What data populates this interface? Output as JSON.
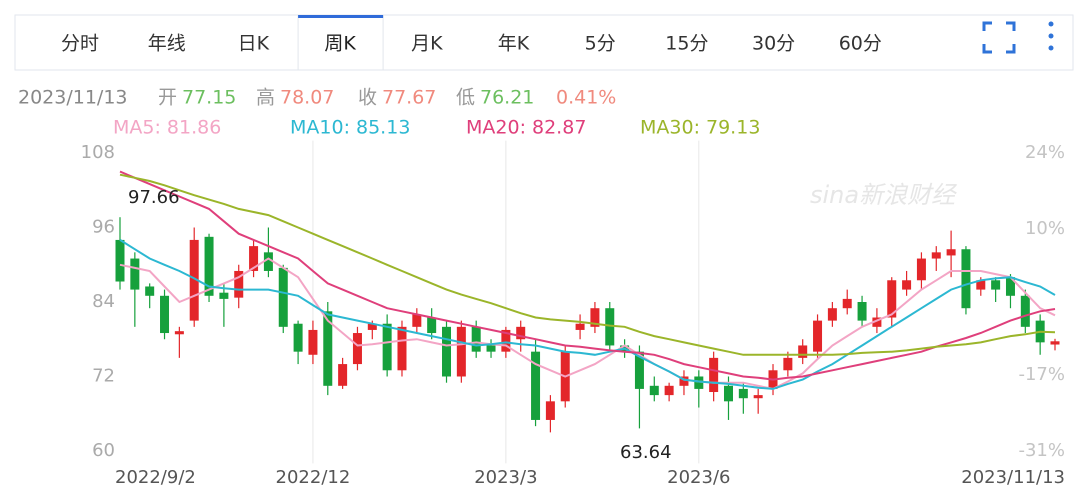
{
  "chart_data": {
    "type": "candlestick",
    "tabs": [
      "分时",
      "年线",
      "日K",
      "周K",
      "月K",
      "年K",
      "5分",
      "15分",
      "30分",
      "60分"
    ],
    "active_tab": 3,
    "quote_labels": [
      "开",
      "高",
      "收",
      "低"
    ],
    "change": {
      "value": 0.41,
      "label": "0.41%"
    },
    "watermark": "sina新浪财经",
    "categories": [
      "2022/9/2",
      null,
      null,
      null,
      null,
      null,
      null,
      null,
      null,
      null,
      null,
      null,
      null,
      "2022/12",
      null,
      null,
      null,
      null,
      null,
      null,
      null,
      null,
      null,
      null,
      null,
      null,
      "2023/3",
      null,
      null,
      null,
      null,
      null,
      null,
      null,
      null,
      null,
      null,
      null,
      null,
      "2023/6",
      null,
      null,
      null,
      null,
      null,
      null,
      null,
      null,
      null,
      null,
      null,
      null,
      null,
      null,
      null,
      null,
      null,
      null,
      null,
      null,
      null,
      null,
      null,
      "2023/11/13"
    ],
    "open": [
      94,
      91,
      86.5,
      85,
      78.8,
      81,
      94.5,
      85.5,
      84.7,
      89,
      92,
      89.5,
      80.5,
      75.5,
      82.5,
      70.5,
      74,
      79.5,
      80.5,
      73,
      80,
      81.5,
      80,
      72,
      80,
      77,
      76,
      78,
      76,
      65,
      68,
      79.5,
      80,
      83,
      77,
      76,
      70.5,
      69,
      70.5,
      72,
      69.5,
      70.5,
      70,
      68.5,
      70,
      73,
      75,
      76,
      81,
      83,
      84,
      80,
      81.5,
      86,
      87.5,
      91,
      91.5,
      92.5,
      86,
      87.5,
      88,
      85,
      81,
      77.15
    ],
    "high": [
      97.66,
      92,
      87,
      86,
      80,
      96,
      95,
      87,
      90,
      94,
      96,
      90,
      81,
      81,
      84,
      75,
      80,
      81,
      82,
      81,
      83,
      83,
      81,
      81,
      81,
      78,
      80,
      81,
      78,
      69,
      77,
      82,
      84,
      84,
      78,
      77,
      72,
      71,
      73,
      73,
      76,
      72,
      71,
      70,
      74,
      76,
      78,
      82,
      84,
      86,
      85,
      83,
      88,
      89,
      92,
      93,
      95.5,
      93,
      88,
      88,
      88.5,
      86,
      82,
      78.07
    ],
    "low": [
      86,
      80,
      83,
      78,
      75,
      80,
      84,
      80,
      83,
      88,
      88,
      79,
      74,
      74,
      69,
      70,
      73,
      78,
      72,
      72,
      79,
      78,
      71,
      71,
      75,
      75,
      75,
      76,
      64,
      63,
      67,
      78,
      79,
      76,
      75,
      63.64,
      68,
      68,
      69,
      67,
      68,
      65,
      66,
      66,
      69,
      72,
      74,
      75,
      80,
      82,
      80,
      79,
      80,
      85,
      86,
      89,
      88,
      82,
      85,
      84,
      83,
      79,
      75.5,
      76.21
    ],
    "close": [
      87.3,
      86,
      85,
      79,
      79.3,
      94,
      85,
      84.5,
      89,
      93,
      89,
      80,
      76,
      79.5,
      70.5,
      74,
      79,
      80.5,
      73,
      80,
      82,
      79,
      72,
      80,
      76,
      76,
      79.5,
      80,
      65,
      68,
      76,
      80.5,
      83,
      77,
      76,
      70,
      69,
      70.5,
      72,
      70,
      75,
      68,
      68.5,
      69,
      73,
      75,
      77,
      81,
      83,
      84.5,
      81,
      81.5,
      87.5,
      87.5,
      91,
      92,
      92.5,
      83,
      87.5,
      86,
      85,
      80,
      77.5,
      77.67
    ],
    "up_color": "#e3262a",
    "down_color": "#16a03c",
    "series": [
      {
        "name": "MA5: 81.86",
        "color": "#f3a5c5",
        "values": [
          90,
          89.5,
          89,
          86.5,
          84,
          85,
          86,
          87,
          88,
          89.5,
          91,
          89.5,
          88,
          84.5,
          81,
          79,
          77,
          77.2,
          77.5,
          77.8,
          78,
          77.5,
          77,
          77.2,
          77.5,
          77.2,
          77,
          75.5,
          74,
          73,
          72,
          73,
          74,
          75.5,
          77,
          75.5,
          74,
          72.8,
          71.5,
          71.2,
          71,
          71,
          71,
          70.5,
          70,
          71.2,
          72.5,
          74.8,
          77,
          78.5,
          80,
          81,
          82,
          84,
          86,
          87.5,
          89,
          89,
          89,
          88.5,
          88,
          85.5,
          83,
          81.86
        ]
      },
      {
        "name": "MA10: 85.13",
        "color": "#2cb8d2",
        "values": [
          94,
          92.5,
          91,
          90,
          89,
          87.8,
          86.5,
          86.2,
          86,
          86,
          86,
          85.5,
          85,
          83.5,
          82,
          81.5,
          81,
          80.5,
          80,
          79.5,
          79,
          78.5,
          78,
          77.5,
          77,
          77.2,
          77.5,
          77.2,
          77,
          76.5,
          76,
          75.8,
          75.5,
          76,
          76.5,
          75.2,
          74,
          72.8,
          71.5,
          71.2,
          71,
          70.8,
          70.5,
          70.2,
          70,
          70.8,
          71.5,
          72.8,
          74,
          75.5,
          77,
          78.5,
          80,
          81.5,
          83,
          84.5,
          86,
          86.8,
          87.5,
          87.8,
          88,
          87.2,
          86.5,
          85.13
        ]
      },
      {
        "name": "MA20: 82.87",
        "color": "#df3f7b",
        "values": [
          105,
          104,
          103,
          102,
          101,
          100,
          99,
          97,
          95,
          94,
          93,
          92,
          91,
          89,
          87,
          86,
          85,
          84,
          83,
          82.5,
          82,
          81.5,
          81,
          80.5,
          80,
          79.5,
          79,
          78.5,
          78,
          77.5,
          77,
          76.8,
          76.5,
          76.2,
          76,
          75.8,
          75.5,
          74.8,
          74,
          73.5,
          73,
          72.5,
          72,
          71.8,
          71.5,
          71.8,
          72,
          72.5,
          73,
          73.5,
          74,
          74.5,
          75,
          75.5,
          76,
          76.8,
          77.5,
          78.2,
          79,
          80,
          81,
          81.8,
          82.5,
          82.87
        ]
      },
      {
        "name": "MA30: 79.13",
        "color": "#9bb52a",
        "values": [
          104.5,
          104,
          103.5,
          102.8,
          102,
          101.2,
          100.5,
          99.8,
          99,
          98.5,
          98,
          97,
          96,
          95,
          94,
          93,
          92,
          91,
          90,
          89,
          88,
          87,
          86,
          85.2,
          84.5,
          83.8,
          83,
          82.2,
          81.5,
          81.2,
          81,
          80.8,
          80.5,
          80.2,
          80,
          79.2,
          78.5,
          78,
          77.5,
          77,
          76.5,
          76,
          75.5,
          75.5,
          75.5,
          75.5,
          75.5,
          75.5,
          75.5,
          75.6,
          75.8,
          75.9,
          76,
          76.2,
          76.5,
          76.8,
          77,
          77.2,
          77.5,
          78,
          78.5,
          78.8,
          79.2,
          79.13
        ]
      }
    ],
    "ylim": [
      58,
      110
    ],
    "yticks": [
      60,
      72,
      84,
      96,
      108
    ],
    "y2lim": [
      -33.29,
      26.29
    ],
    "y2ticks": [
      {
        "value": 24,
        "label": "24%"
      },
      {
        "value": 10,
        "label": "10%"
      },
      {
        "value": -17,
        "label": "-17%"
      },
      {
        "value": -31,
        "label": "-31%"
      }
    ],
    "grid": true
  }
}
